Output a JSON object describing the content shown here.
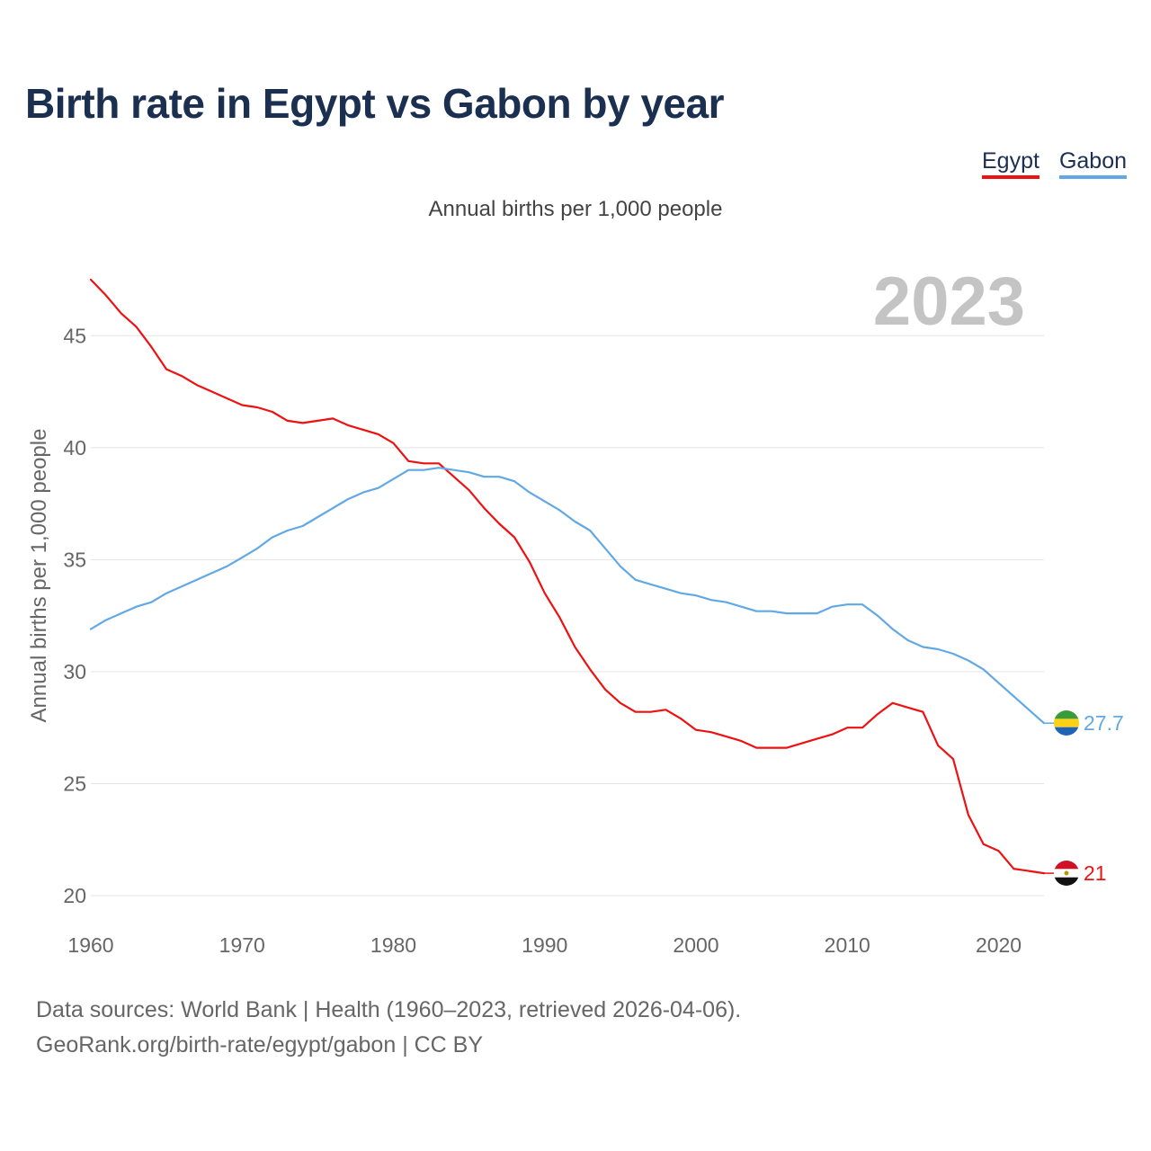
{
  "title": "Birth rate in Egypt vs Gabon by year",
  "legend": [
    {
      "label": "Egypt",
      "color": "#ee1111"
    },
    {
      "label": "Gabon",
      "color": "#62a8e5"
    }
  ],
  "footer": {
    "line1": "Data sources: World Bank | Health (1960–2023, retrieved 2026-04-06).",
    "line2": "GeoRank.org/birth-rate/egypt/gabon | CC BY"
  },
  "colors": {
    "egypt": "#ee1111",
    "gabon": "#62a8e5",
    "grid": "#e4e4e4",
    "year_watermark": "#c4c4c4"
  },
  "chart_data": {
    "type": "line",
    "title": "Birth rate in Egypt vs Gabon by year",
    "subtitle": "Annual births per 1,000 people",
    "year_label": "2023",
    "xlabel": "",
    "ylabel": "Annual births per 1,000 people",
    "xlim": [
      1960,
      2023
    ],
    "ylim": [
      20,
      47.5
    ],
    "x_ticks": [
      1960,
      1970,
      1980,
      1990,
      2000,
      2010,
      2020
    ],
    "y_ticks": [
      20,
      25,
      30,
      35,
      40,
      45
    ],
    "grid": true,
    "legend_position": "top-right",
    "x": [
      1960,
      1961,
      1962,
      1963,
      1964,
      1965,
      1966,
      1967,
      1968,
      1969,
      1970,
      1971,
      1972,
      1973,
      1974,
      1975,
      1976,
      1977,
      1978,
      1979,
      1980,
      1981,
      1982,
      1983,
      1984,
      1985,
      1986,
      1987,
      1988,
      1989,
      1990,
      1991,
      1992,
      1993,
      1994,
      1995,
      1996,
      1997,
      1998,
      1999,
      2000,
      2001,
      2002,
      2003,
      2004,
      2005,
      2006,
      2007,
      2008,
      2009,
      2010,
      2011,
      2012,
      2013,
      2014,
      2015,
      2016,
      2017,
      2018,
      2019,
      2020,
      2021,
      2022,
      2023
    ],
    "series": [
      {
        "name": "Egypt",
        "color": "#ee1111",
        "end_label": "21",
        "values": [
          47.5,
          46.8,
          46.0,
          45.4,
          44.5,
          43.5,
          43.2,
          42.8,
          42.5,
          42.2,
          41.9,
          41.8,
          41.6,
          41.2,
          41.1,
          41.2,
          41.3,
          41.0,
          40.8,
          40.6,
          40.2,
          39.4,
          39.3,
          39.3,
          38.7,
          38.1,
          37.3,
          36.6,
          36.0,
          34.9,
          33.5,
          32.4,
          31.1,
          30.1,
          29.2,
          28.6,
          28.2,
          28.2,
          28.3,
          27.9,
          27.4,
          27.3,
          27.1,
          26.9,
          26.6,
          26.6,
          26.6,
          26.8,
          27.0,
          27.2,
          27.5,
          27.5,
          28.1,
          28.6,
          28.4,
          28.2,
          26.7,
          26.1,
          23.6,
          22.3,
          22.0,
          21.2,
          21.1,
          21.0
        ]
      },
      {
        "name": "Gabon",
        "color": "#62a8e5",
        "end_label": "27.7",
        "values": [
          31.9,
          32.3,
          32.6,
          32.9,
          33.1,
          33.5,
          33.8,
          34.1,
          34.4,
          34.7,
          35.1,
          35.5,
          36.0,
          36.3,
          36.5,
          36.9,
          37.3,
          37.7,
          38.0,
          38.2,
          38.6,
          39.0,
          39.0,
          39.1,
          39.0,
          38.9,
          38.7,
          38.7,
          38.5,
          38.0,
          37.6,
          37.2,
          36.7,
          36.3,
          35.5,
          34.7,
          34.1,
          33.9,
          33.7,
          33.5,
          33.4,
          33.2,
          33.1,
          32.9,
          32.7,
          32.7,
          32.6,
          32.6,
          32.6,
          32.9,
          33.0,
          33.0,
          32.5,
          31.9,
          31.4,
          31.1,
          31.0,
          30.8,
          30.5,
          30.1,
          29.5,
          28.9,
          28.3,
          27.7
        ]
      }
    ]
  }
}
